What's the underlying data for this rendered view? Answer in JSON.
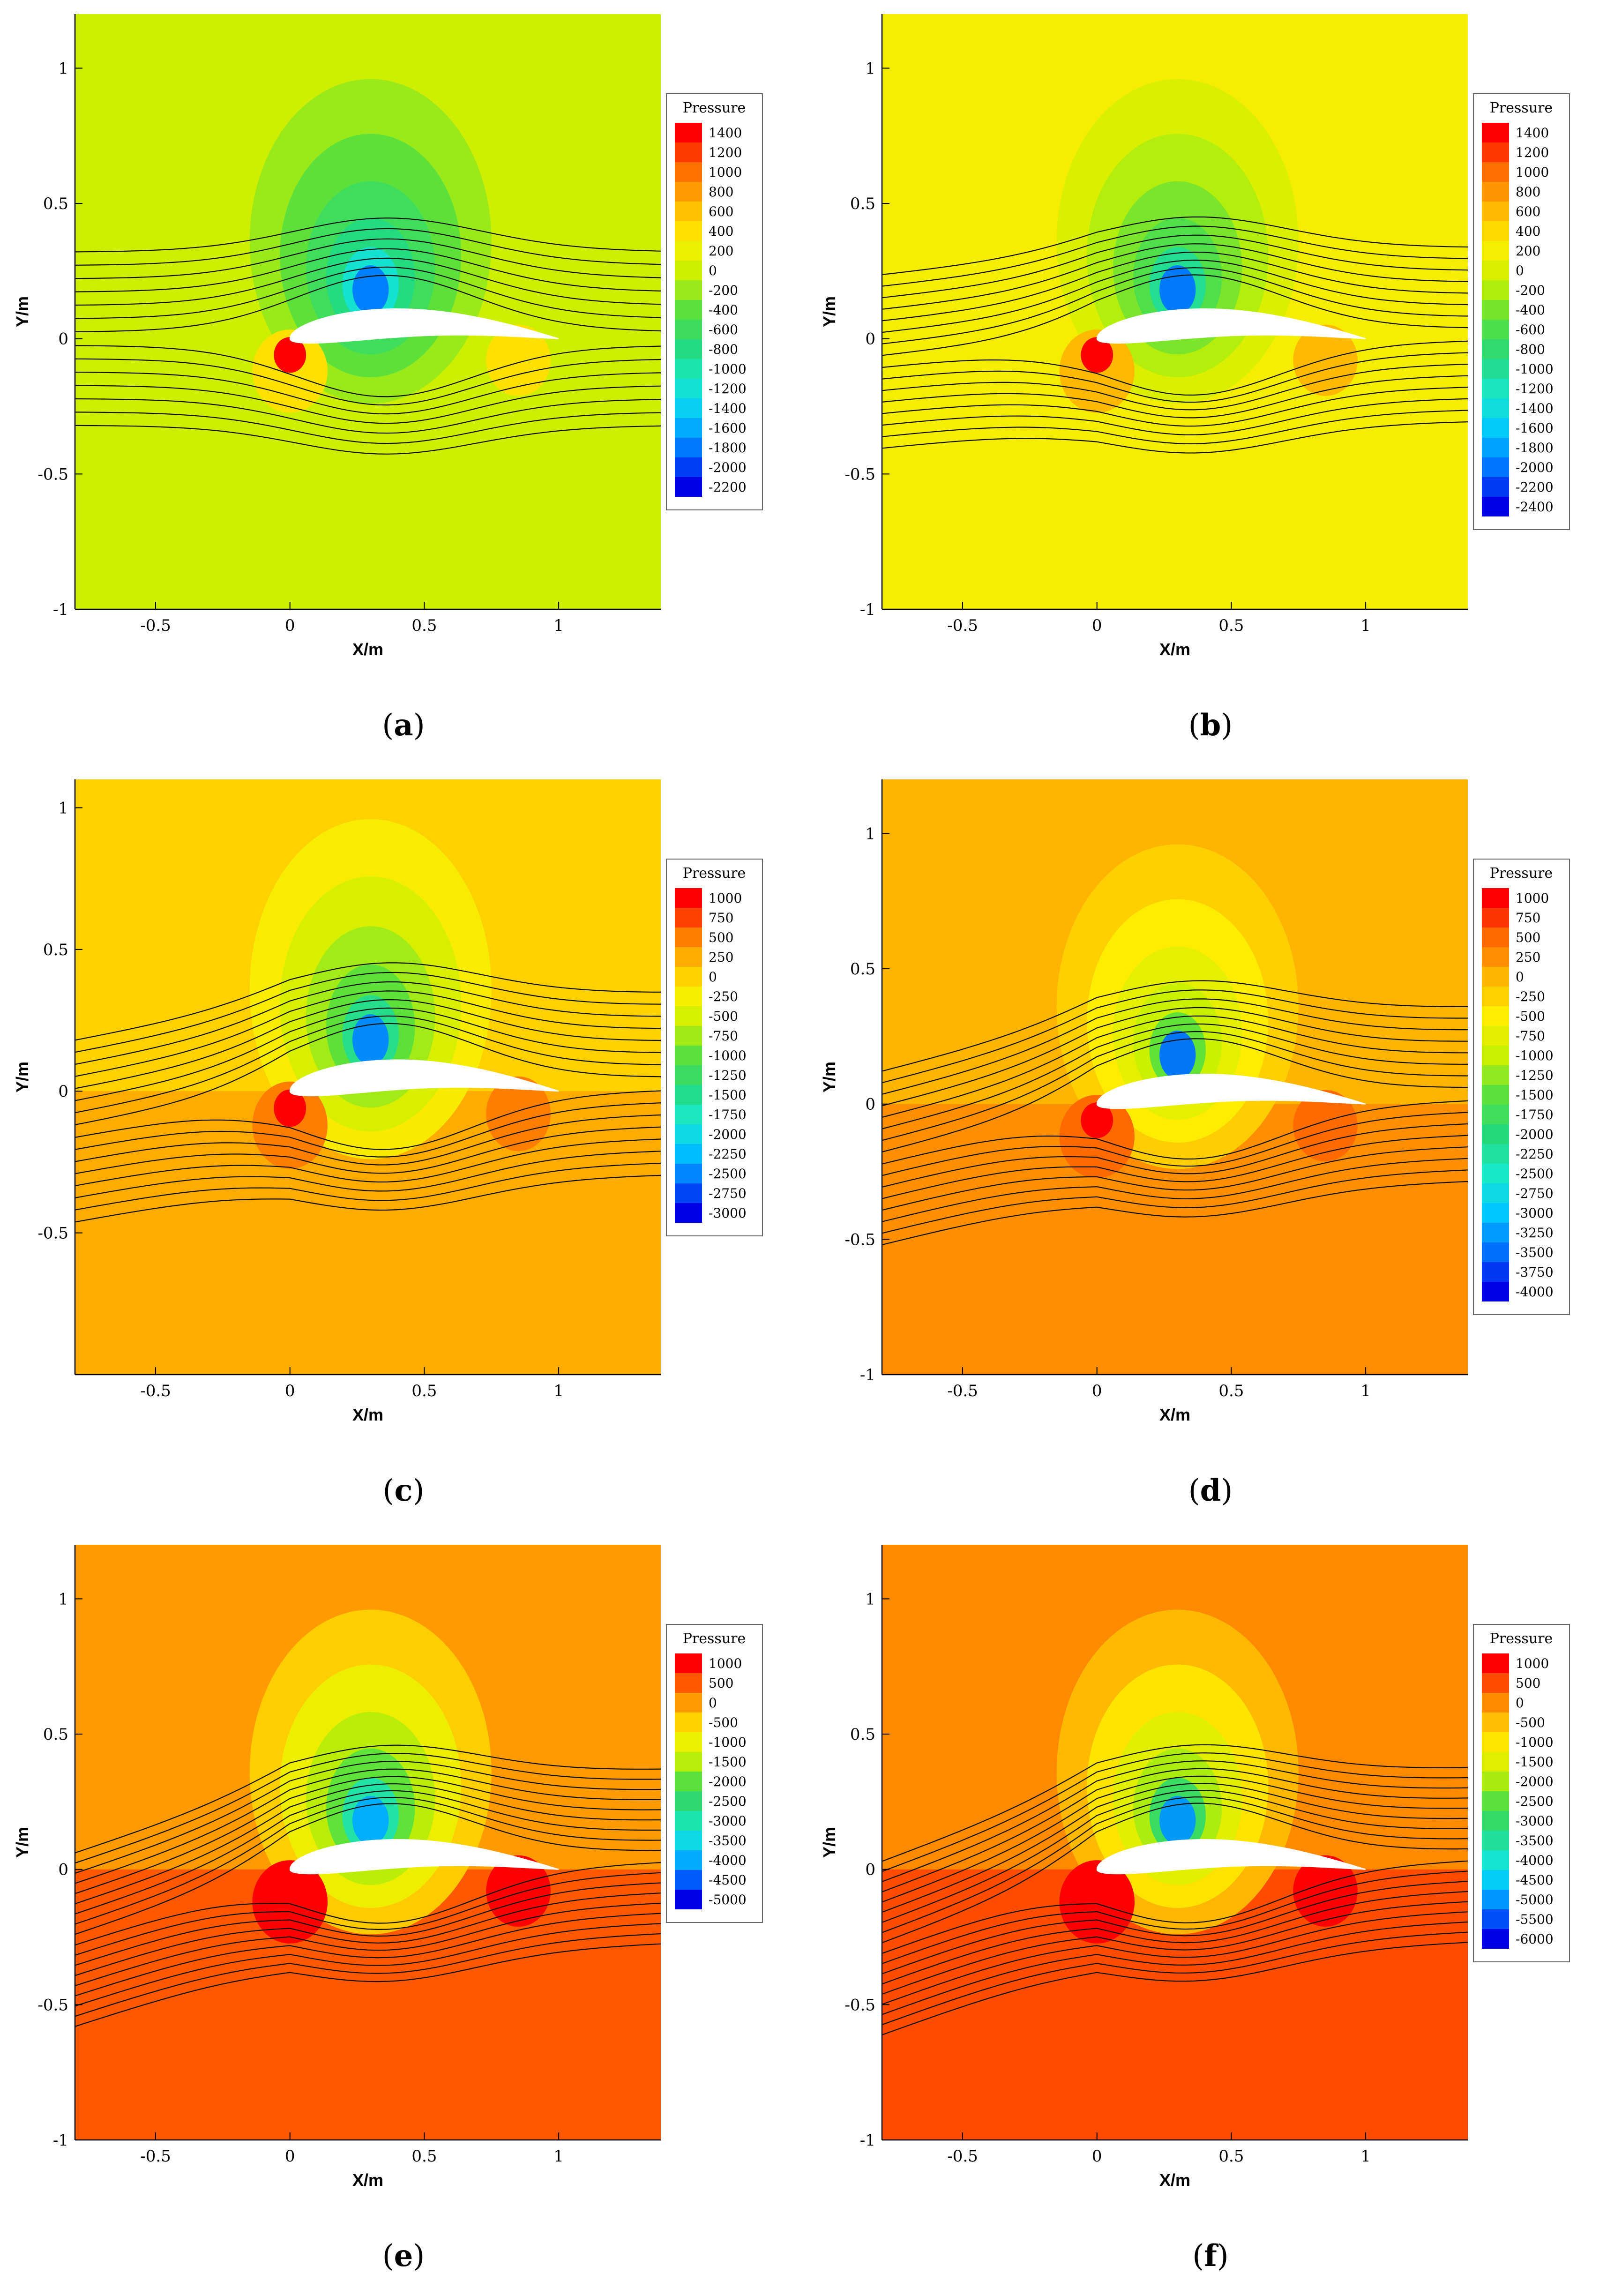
{
  "chart_data": [
    {
      "type": "contour",
      "panel_label": "a",
      "caption_open": "(",
      "caption_letter": "a",
      "caption_close": ")",
      "xlabel": "X/m",
      "ylabel": "Y/m",
      "xlim": [
        -0.8,
        1.38
      ],
      "ylim": [
        -1,
        1.2
      ],
      "xticks": [
        "-0.5",
        "0",
        "0.5",
        "1"
      ],
      "xtick_values": [
        -0.5,
        0,
        0.5,
        1
      ],
      "yticks": [
        "-1",
        "-0.5",
        "0",
        "0.5",
        "1"
      ],
      "ytick_values": [
        -1,
        -0.5,
        0,
        0.5,
        1
      ],
      "legend_title": "Pressure",
      "legend_levels": [
        "1400",
        "1200",
        "1000",
        "800",
        "600",
        "400",
        "200",
        "0",
        "-200",
        "-400",
        "-600",
        "-800",
        "-1000",
        "-1200",
        "-1400",
        "-1600",
        "-1800",
        "-2000",
        "-2200"
      ],
      "background_level": "0",
      "streamline_angle_deg": 0,
      "streamline_count": 14
    },
    {
      "type": "contour",
      "panel_label": "b",
      "caption_open": "(",
      "caption_letter": "b",
      "caption_close": ")",
      "xlabel": "X/m",
      "ylabel": "Y/m",
      "xlim": [
        -0.8,
        1.38
      ],
      "ylim": [
        -1,
        1.2
      ],
      "xticks": [
        "-0.5",
        "0",
        "0.5",
        "1"
      ],
      "xtick_values": [
        -0.5,
        0,
        0.5,
        1
      ],
      "yticks": [
        "-1",
        "-0.5",
        "0",
        "0.5",
        "1"
      ],
      "ytick_values": [
        -1,
        -0.5,
        0,
        0.5,
        1
      ],
      "legend_title": "Pressure",
      "legend_levels": [
        "1400",
        "1200",
        "1000",
        "800",
        "600",
        "400",
        "200",
        "0",
        "-200",
        "-400",
        "-600",
        "-800",
        "-1000",
        "-1200",
        "-1400",
        "-1600",
        "-1800",
        "-2000",
        "-2200",
        "-2400"
      ],
      "background_level": "200",
      "streamline_angle_deg": 6,
      "streamline_count": 16
    },
    {
      "type": "contour",
      "panel_label": "c",
      "caption_open": "(",
      "caption_letter": "c",
      "caption_close": ")",
      "xlabel": "X/m",
      "ylabel": "Y/m",
      "xlim": [
        -0.8,
        1.38
      ],
      "ylim": [
        -1,
        1.1
      ],
      "xticks": [
        "-0.5",
        "0",
        "0.5",
        "1"
      ],
      "xtick_values": [
        -0.5,
        0,
        0.5,
        1
      ],
      "yticks": [
        "-0.5",
        "0",
        "0.5",
        "1"
      ],
      "ytick_values": [
        -0.5,
        0,
        0.5,
        1
      ],
      "legend_title": "Pressure",
      "legend_levels": [
        "1000",
        "750",
        "500",
        "250",
        "0",
        "-250",
        "-500",
        "-750",
        "-1000",
        "-1250",
        "-1500",
        "-1750",
        "-2000",
        "-2250",
        "-2500",
        "-2750",
        "-3000"
      ],
      "background_level": "0",
      "streamline_angle_deg": 10,
      "streamline_count": 16
    },
    {
      "type": "contour",
      "panel_label": "d",
      "caption_open": "(",
      "caption_letter": "d",
      "caption_close": ")",
      "xlabel": "X/m",
      "ylabel": "Y/m",
      "xlim": [
        -0.8,
        1.38
      ],
      "ylim": [
        -1,
        1.2
      ],
      "xticks": [
        "-0.5",
        "0",
        "0.5",
        "1"
      ],
      "xtick_values": [
        -0.5,
        0,
        0.5,
        1
      ],
      "yticks": [
        "-1",
        "-0.5",
        "0",
        "0.5",
        "1"
      ],
      "ytick_values": [
        -1,
        -0.5,
        0,
        0.5,
        1
      ],
      "legend_title": "Pressure",
      "legend_levels": [
        "1000",
        "750",
        "500",
        "250",
        "0",
        "-250",
        "-500",
        "-750",
        "-1000",
        "-1250",
        "-1500",
        "-1750",
        "-2000",
        "-2250",
        "-2500",
        "-2750",
        "-3000",
        "-3250",
        "-3500",
        "-3750",
        "-4000"
      ],
      "background_level": "0",
      "streamline_angle_deg": 14,
      "streamline_count": 16
    },
    {
      "type": "contour",
      "panel_label": "e",
      "caption_open": "(",
      "caption_letter": "e",
      "caption_close": ")",
      "xlabel": "X/m",
      "ylabel": "Y/m",
      "xlim": [
        -0.8,
        1.38
      ],
      "ylim": [
        -1,
        1.2
      ],
      "xticks": [
        "-0.5",
        "0",
        "0.5",
        "1"
      ],
      "xtick_values": [
        -0.5,
        0,
        0.5,
        1
      ],
      "yticks": [
        "-1",
        "-0.5",
        "0",
        "0.5",
        "1"
      ],
      "ytick_values": [
        -1,
        -0.5,
        0,
        0.5,
        1
      ],
      "legend_title": "Pressure",
      "legend_levels": [
        "1000",
        "500",
        "0",
        "-500",
        "-1000",
        "-1500",
        "-2000",
        "-2500",
        "-3000",
        "-3500",
        "-4000",
        "-4500",
        "-5000"
      ],
      "background_level": "0",
      "streamline_angle_deg": 18,
      "streamline_count": 18
    },
    {
      "type": "contour",
      "panel_label": "f",
      "caption_open": "(",
      "caption_letter": "f",
      "caption_close": ")",
      "xlabel": "X/m",
      "ylabel": "Y/m",
      "xlim": [
        -0.8,
        1.38
      ],
      "ylim": [
        -1,
        1.2
      ],
      "xticks": [
        "-0.5",
        "0",
        "0.5",
        "1"
      ],
      "xtick_values": [
        -0.5,
        0,
        0.5,
        1
      ],
      "yticks": [
        "-1",
        "-0.5",
        "0",
        "0.5",
        "1"
      ],
      "ytick_values": [
        -1,
        -0.5,
        0,
        0.5,
        1
      ],
      "legend_title": "Pressure",
      "legend_levels": [
        "1000",
        "500",
        "0",
        "-500",
        "-1000",
        "-1500",
        "-2000",
        "-2500",
        "-3000",
        "-3500",
        "-4000",
        "-4500",
        "-5000",
        "-5500",
        "-6000"
      ],
      "background_level": "0",
      "streamline_angle_deg": 20,
      "streamline_count": 18
    }
  ]
}
